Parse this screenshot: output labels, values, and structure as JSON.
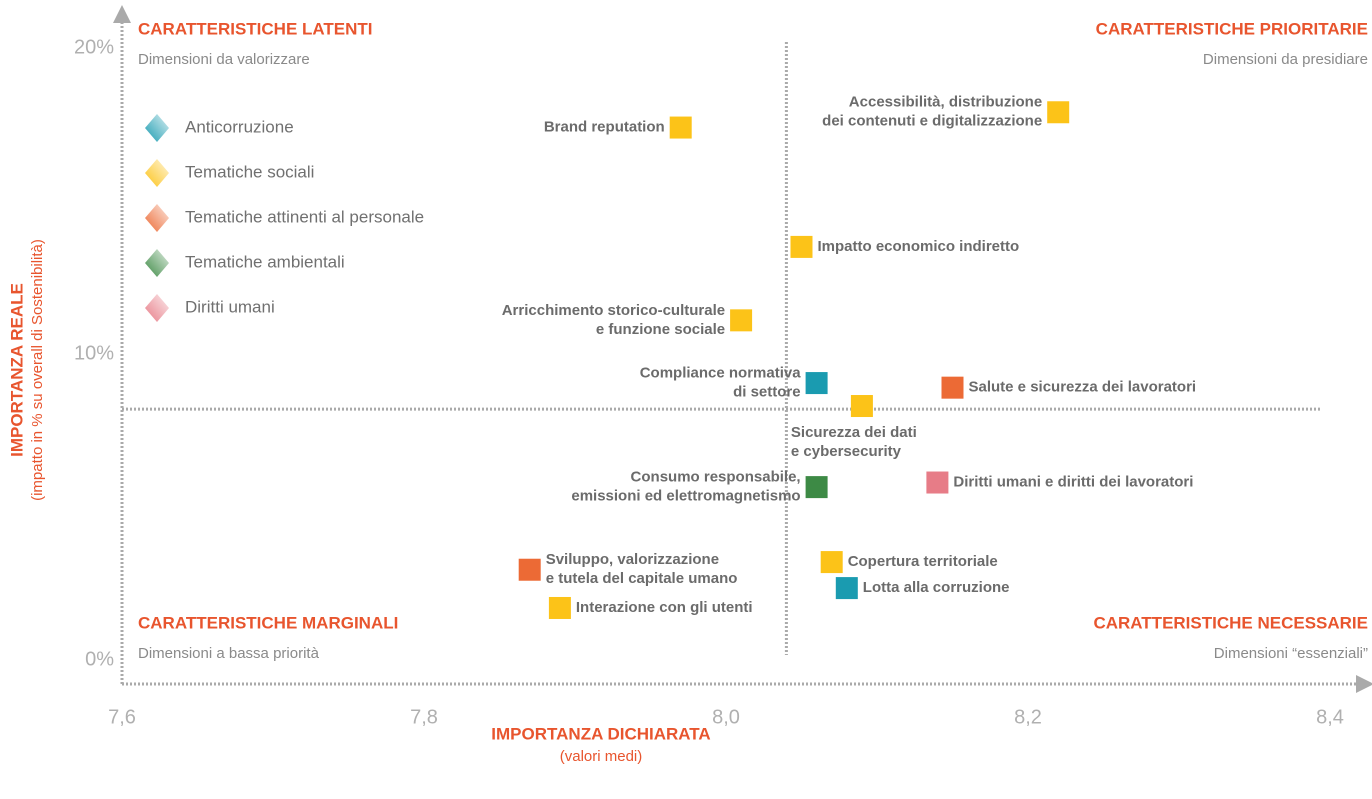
{
  "chart_data": {
    "type": "scatter",
    "xlabel": "IMPORTANZA DICHIARATA",
    "xlabel_sub": "(valori medi)",
    "ylabel": "IMPORTANZA REALE",
    "ylabel_sub": "(impatto in % su overall di Sostenibilità)",
    "xlim": [
      7.6,
      8.4
    ],
    "ylim": [
      0,
      20
    ],
    "xticks": [
      {
        "value": 7.6,
        "label": "7,6"
      },
      {
        "value": 7.8,
        "label": "7,8"
      },
      {
        "value": 8.0,
        "label": "8,0"
      },
      {
        "value": 8.2,
        "label": "8,2"
      },
      {
        "value": 8.4,
        "label": "8,4"
      }
    ],
    "yticks": [
      {
        "value": 0,
        "label": "0%"
      },
      {
        "value": 10,
        "label": "10%"
      },
      {
        "value": 20,
        "label": "20%"
      }
    ],
    "quadrant_x": 8.04,
    "quadrant_y": 8.2,
    "quadrants": [
      {
        "title": "CARATTERISTICHE LATENTI",
        "subtitle": "Dimensioni da valorizzare"
      },
      {
        "title": "CARATTERISTICHE PRIORITARIE",
        "subtitle": "Dimensioni da presidiare"
      },
      {
        "title": "CARATTERISTICHE MARGINALI",
        "subtitle": "Dimensioni a bassa priorità"
      },
      {
        "title": "CARATTERISTICHE NECESSARIE",
        "subtitle": "Dimensioni “essenziali”"
      }
    ],
    "series": [
      {
        "name": "Anticorruzione",
        "color": "#1a9bb0",
        "x": [
          8.06,
          8.08
        ],
        "values": [
          9.05,
          2.35
        ],
        "labels": [
          [
            "Compliance normativa",
            "di settore"
          ],
          [
            "Lotta alla corruzione"
          ]
        ]
      },
      {
        "name": "Tematiche sociali",
        "color": "#fcc318",
        "x": [
          7.97,
          8.22,
          8.05,
          8.01,
          8.09,
          8.07,
          7.89
        ],
        "values": [
          17.4,
          17.9,
          13.5,
          11.1,
          8.3,
          3.2,
          1.7
        ],
        "labels": [
          [
            "Brand reputation"
          ],
          [
            "Accessibilità, distribuzione",
            "dei contenuti e digitalizzazione"
          ],
          [
            "Impatto economico indiretto"
          ],
          [
            "Arricchimento storico-culturale",
            "e funzione sociale"
          ],
          [
            "Sicurezza dei dati",
            "e cybersecurity"
          ],
          [
            "Copertura territoriale"
          ],
          [
            "Interazione con gli utenti"
          ]
        ]
      },
      {
        "name": "Tematiche attinenti al personale",
        "color": "#ec6a35",
        "x": [
          8.15,
          7.87
        ],
        "values": [
          8.9,
          2.95
        ],
        "labels": [
          [
            "Salute e sicurezza dei lavoratori"
          ],
          [
            "Sviluppo, valorizzazione",
            "e tutela del capitale umano"
          ]
        ]
      },
      {
        "name": "Tematiche ambientali",
        "color": "#3d8a45",
        "x": [
          8.06
        ],
        "values": [
          5.65
        ],
        "labels": [
          [
            "Consumo responsabile,",
            "emissioni ed elettromagnetismo"
          ]
        ]
      },
      {
        "name": "Diritti umani",
        "color": "#e77c87",
        "x": [
          8.14
        ],
        "values": [
          5.8
        ],
        "labels": [
          [
            "Diritti umani e diritti dei lavoratori"
          ]
        ]
      }
    ]
  }
}
